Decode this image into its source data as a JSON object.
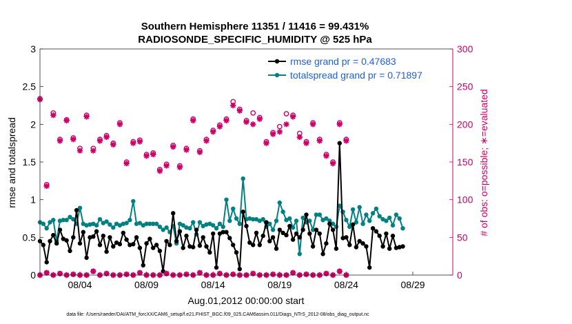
{
  "chart_data": {
    "type": "line",
    "title_line1": "Southern Hemisphere 11351 / 11416 = 99.431%",
    "title_line2": "RADIOSONDE_SPECIFIC_HUMIDITY @ 525 hPa",
    "ylabel_left": "rmse and totalspread",
    "ylabel_right": "# of obs: o=possible; ∗=evaluated",
    "xlabel": "Aug.01,2012 00:00:00 start",
    "footnote": "data file: /Users/raeder/DAI/ATM_forcXX/CAM6_setup/f.e21.FHIST_BGC.f09_025.CAM6assim.011/Diags_NTrS_2012-08/obs_diag_output.nc",
    "xlim": [
      1,
      32
    ],
    "ylim_left": [
      0,
      3
    ],
    "ylim_right": [
      0,
      300
    ],
    "yticks_left": [
      "0",
      "0.5",
      "1",
      "1.5",
      "2",
      "2.5",
      "3"
    ],
    "yticks_right": [
      "0",
      "50",
      "100",
      "150",
      "200",
      "250",
      "300"
    ],
    "xtick_labels": [
      "08/04",
      "08/09",
      "08/14",
      "08/19",
      "08/24",
      "08/29"
    ],
    "xtick_days": [
      4,
      9,
      14,
      19,
      24,
      29
    ],
    "colors": {
      "rmse": "#000000",
      "spread": "#008080",
      "obs": "#cc0066",
      "legend_text": "#1f5fd6"
    },
    "legend": {
      "rmse_label": "rmse grand pr = 0.47683",
      "spread_label": "totalspread grand pr = 0.71897",
      "placement": "top-right"
    },
    "days_start": 1.0,
    "days_step": 0.25,
    "series": [
      {
        "name": "rmse",
        "values": [
          0.45,
          0.4,
          0.17,
          0.45,
          0.53,
          0.42,
          0.6,
          0.48,
          0.46,
          0.32,
          0.5,
          0.86,
          0.42,
          0.57,
          0.23,
          0.5,
          0.51,
          0.58,
          0.4,
          0.52,
          0.31,
          0.5,
          0.38,
          0.43,
          0.41,
          0.56,
          0.47,
          0.4,
          0.41,
          0.5,
          0.36,
          0.13,
          0.42,
          0.48,
          0.36,
          0.4,
          0.32,
          0.05,
          0.45,
          0.4,
          0.82,
          0.45,
          0.58,
          0.36,
          0.52,
          0.38,
          0.37,
          0.6,
          0.39,
          0.5,
          0.38,
          0.3,
          0.55,
          0.1,
          0.55,
          0.57,
          0.57,
          0.49,
          0.4,
          0.3,
          0.08,
          0.84,
          0.65,
          0.43,
          0.4,
          0.56,
          0.4,
          0.52,
          0.7,
          0.45,
          0.5,
          0.35,
          0.6,
          0.56,
          0.53,
          0.65,
          0.47,
          0.55,
          0.5,
          0.6,
          0.8,
          0.55,
          0.38,
          0.6,
          0.55,
          0.28,
          0.42,
          0.68,
          0.6,
          0.35,
          1.75,
          0.49,
          0.5,
          0.4,
          0.67,
          0.37,
          0.45,
          0.42,
          0.38,
          0.1,
          0.62,
          0.58,
          0.52,
          0.38,
          0.55,
          0.35,
          0.52,
          0.36,
          0.37,
          0.38
        ]
      },
      {
        "name": "totalspread",
        "values": [
          0.7,
          0.68,
          0.62,
          0.7,
          0.73,
          0.45,
          0.72,
          0.73,
          0.73,
          0.77,
          0.74,
          0.68,
          0.89,
          0.68,
          0.66,
          0.67,
          0.68,
          0.66,
          0.74,
          0.69,
          0.71,
          0.67,
          0.63,
          0.68,
          0.66,
          0.68,
          0.69,
          0.73,
          0.98,
          0.68,
          0.69,
          0.66,
          0.68,
          0.68,
          0.68,
          0.68,
          0.64,
          0.6,
          0.63,
          0.57,
          0.65,
          0.42,
          0.68,
          0.66,
          0.63,
          0.62,
          0.7,
          0.54,
          0.7,
          0.65,
          0.67,
          0.68,
          0.66,
          0.62,
          0.68,
          0.64,
          1.0,
          0.72,
          0.88,
          0.75,
          0.68,
          1.28,
          0.74,
          0.75,
          0.74,
          0.74,
          0.72,
          0.74,
          0.64,
          0.68,
          0.6,
          0.72,
          0.96,
          0.84,
          0.73,
          0.75,
          0.63,
          0.72,
          0.28,
          0.76,
          0.7,
          0.72,
          0.6,
          0.8,
          0.8,
          0.73,
          0.75,
          0.72,
          0.68,
          0.64,
          0.92,
          0.84,
          0.73,
          0.64,
          0.87,
          0.7,
          0.9,
          0.68,
          0.8,
          0.72,
          0.82,
          0.88,
          0.78,
          0.74,
          0.72,
          0.76,
          0.66,
          0.8,
          0.75,
          0.62
        ]
      },
      {
        "name": "obs_evaluated",
        "start": 1.0,
        "step": 0.5,
        "values": [
          233,
          118,
          212,
          178,
          205,
          180,
          165,
          210,
          165,
          178,
          183,
          173,
          200,
          148,
          175,
          177,
          158,
          160,
          138,
          145,
          170,
          143,
          166,
          205,
          163,
          178,
          190,
          197,
          205,
          225,
          218,
          203,
          200,
          207,
          175,
          187,
          190,
          200,
          210,
          183,
          175,
          200,
          178,
          158,
          148,
          200,
          178
        ]
      },
      {
        "name": "obs_possible",
        "start": 1.0,
        "step": 0.5,
        "values": [
          234,
          120,
          215,
          180,
          206,
          182,
          168,
          212,
          168,
          180,
          185,
          175,
          202,
          150,
          177,
          179,
          160,
          162,
          140,
          147,
          172,
          145,
          168,
          207,
          165,
          180,
          192,
          199,
          207,
          230,
          220,
          205,
          215,
          209,
          177,
          189,
          197,
          214,
          212,
          188,
          177,
          202,
          180,
          160,
          150,
          202,
          180
        ]
      },
      {
        "name": "obs_low",
        "start": 1.0,
        "step": 0.5,
        "values": [
          0,
          3,
          0,
          2,
          0,
          1,
          0,
          0,
          5,
          0,
          2,
          0,
          0,
          1,
          0,
          3,
          0,
          0,
          0,
          2,
          0,
          0,
          1,
          0,
          3,
          0,
          0,
          2,
          0,
          1,
          0,
          0,
          2,
          0,
          0,
          1,
          0,
          0,
          3,
          0,
          1,
          0,
          0,
          2,
          0,
          5,
          0
        ]
      }
    ]
  }
}
